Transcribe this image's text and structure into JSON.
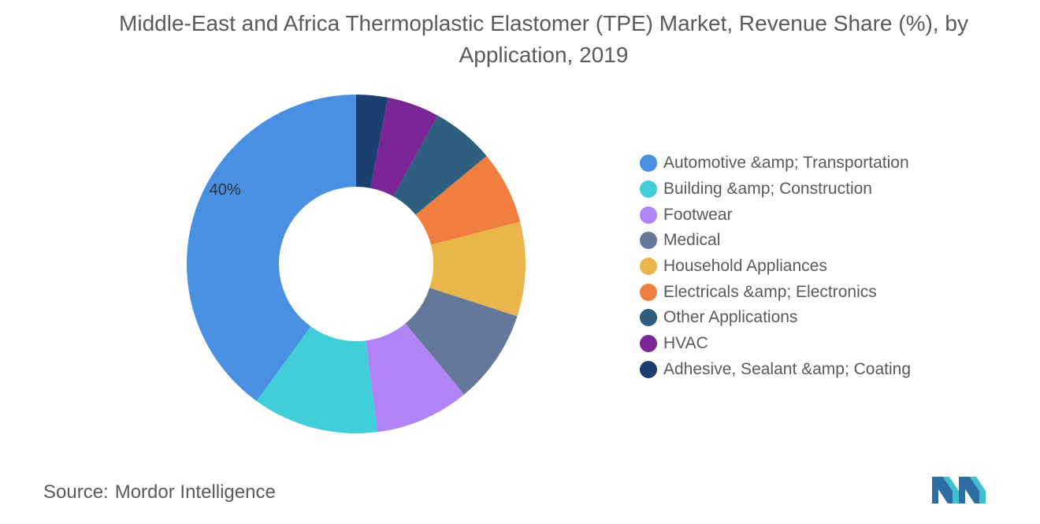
{
  "title": "Middle-East and Africa Thermoplastic Elastomer (TPE) Market, Revenue Share (%), by Application, 2019",
  "source": {
    "prefix": "Source:",
    "name": "Mordor Intelligence"
  },
  "chart_data": {
    "type": "pie",
    "variant": "donut",
    "title": "Middle-East and Africa Thermoplastic Elastomer (TPE) Market, Revenue Share (%), by Application, 2019",
    "legend_position": "right",
    "labels": [
      "40%"
    ],
    "slices": [
      {
        "name": "Automotive &amp; Transportation",
        "value": 40,
        "color": "#4a90e2"
      },
      {
        "name": "Building &amp; Construction",
        "value": 12,
        "color": "#40cfd9"
      },
      {
        "name": "Footwear",
        "value": 9,
        "color": "#b084f5"
      },
      {
        "name": "Medical",
        "value": 9,
        "color": "#667899"
      },
      {
        "name": "Household Appliances",
        "value": 9,
        "color": "#eab54a"
      },
      {
        "name": "Electricals &amp; Electronics",
        "value": 7,
        "color": "#f07e3e"
      },
      {
        "name": "Other Applications",
        "value": 6,
        "color": "#2f5f80"
      },
      {
        "name": "HVAC",
        "value": 5,
        "color": "#7b2596"
      },
      {
        "name": "Adhesive, Sealant &amp; Coating",
        "value": 3,
        "color": "#1b3f70"
      }
    ]
  }
}
